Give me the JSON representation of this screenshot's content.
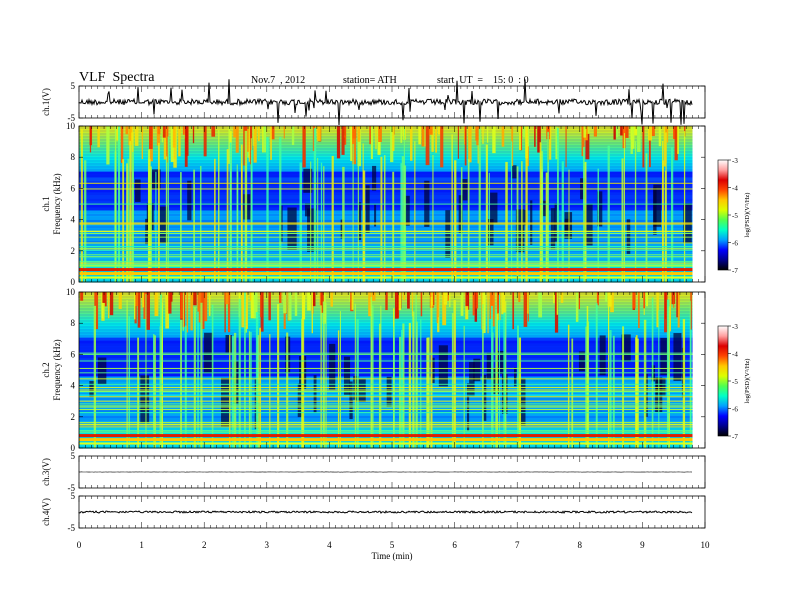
{
  "header": {
    "title": "VLF  Spectra",
    "date": "Nov.7  , 2012",
    "station": "station= ATH",
    "start": "start  UT  =    15: 0  : 0"
  },
  "colors": {
    "jet_stops": [
      "#00008c",
      "#0000ff",
      "#00b4ff",
      "#00ffe6",
      "#6eff6e",
      "#e6ff14",
      "#ffc800",
      "#ff5000",
      "#c80000"
    ],
    "colorbar_stops": [
      "#000000",
      "#00008c",
      "#0000ff",
      "#00a0ff",
      "#00ffc8",
      "#50ff50",
      "#dcff00",
      "#ffc800",
      "#ff4600",
      "#dc0000",
      "#ffa0a0",
      "#ffffff"
    ],
    "trace": "#000000"
  },
  "chart_data": {
    "type": "heatmap",
    "xlabel": "Time  (min)",
    "xlim": [
      0,
      10
    ],
    "x_ticks": [
      "0",
      "1",
      "2",
      "3",
      "4",
      "5",
      "6",
      "7",
      "8",
      "9",
      "10"
    ],
    "data_end_min": 9.8,
    "panels": [
      {
        "kind": "waveform",
        "ylabel": "ch.1(V)",
        "ylim": [
          -5,
          5
        ],
        "y_ticks": [
          "5",
          "-5"
        ],
        "baseline": 0,
        "amplitude": 0.9,
        "spikes": true
      },
      {
        "kind": "spectrogram",
        "ylabel": "Frequency  (kHz)",
        "channel": "ch.1",
        "ylim": [
          0,
          10
        ],
        "y_ticks": [
          "0",
          "2",
          "4",
          "6",
          "8",
          "10"
        ],
        "colorbar": {
          "label": "log(PSD)(V²/Hz)",
          "ticks": [
            "-3",
            "-4",
            "-5",
            "-6",
            "-7"
          ],
          "range": [
            -7,
            -3
          ]
        }
      },
      {
        "kind": "spectrogram",
        "ylabel": "Frequency  (kHz)",
        "channel": "ch.2",
        "ylim": [
          0,
          10
        ],
        "y_ticks": [
          "0",
          "2",
          "4",
          "6",
          "8",
          "10"
        ],
        "colorbar": {
          "label": "log(PSD)(V²/Hz)",
          "ticks": [
            "-3",
            "-4",
            "-5",
            "-6",
            "-7"
          ],
          "range": [
            -7,
            -3
          ]
        }
      },
      {
        "kind": "waveform",
        "ylabel": "ch.3(V)",
        "ylim": [
          -5,
          5
        ],
        "y_ticks": [
          "5",
          "-5"
        ],
        "baseline": 0,
        "amplitude": 0.05,
        "spikes": false
      },
      {
        "kind": "waveform",
        "ylabel": "ch.4(V)",
        "ylim": [
          -5,
          5
        ],
        "y_ticks": [
          "5",
          "-5"
        ],
        "baseline": 0,
        "amplitude": 0.3,
        "spikes": false
      }
    ]
  }
}
